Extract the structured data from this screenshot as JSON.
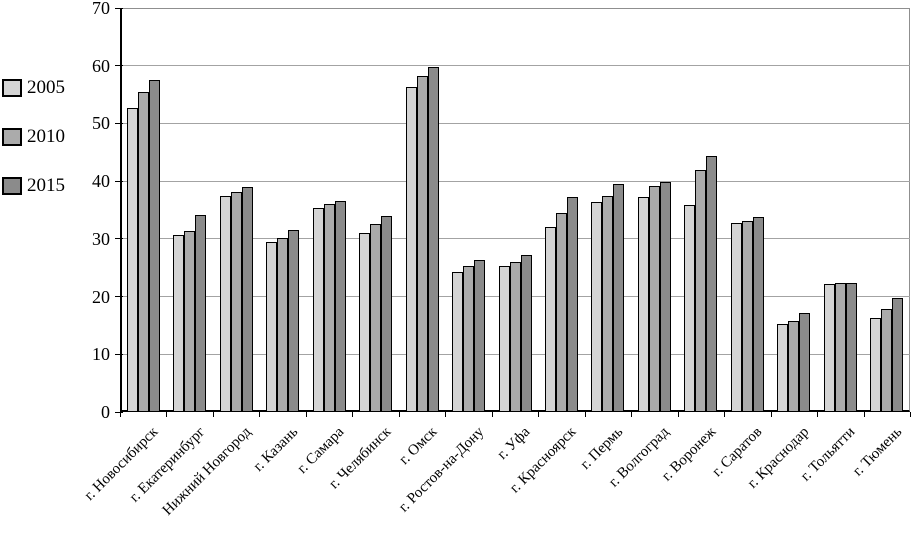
{
  "chart_data": {
    "type": "bar",
    "title": "",
    "xlabel": "",
    "ylabel": "",
    "categories": [
      "г. Новосибирск",
      "г. Екатеринбург",
      "Нижний Новгород",
      "г. Казань",
      "г. Самара",
      "г. Челябинск",
      "г. Омск",
      "г. Ростов-на-Дону",
      "г. Уфа",
      "г. Красноярск",
      "г. Пермь",
      "г. Волгоград",
      "г. Воронеж",
      "г. Саратов",
      "г. Краснодар",
      "г. Тольятти",
      "г. Тюмень"
    ],
    "series": [
      {
        "name": "2005",
        "color": "#d4d4d4",
        "values": [
          52.6,
          30.6,
          37.4,
          29.5,
          35.4,
          31.0,
          56.3,
          24.3,
          25.3,
          32.0,
          36.3,
          37.3,
          35.8,
          32.7,
          15.2,
          22.2,
          16.3
        ]
      },
      {
        "name": "2010",
        "color": "#ababab",
        "values": [
          55.5,
          31.3,
          38.1,
          30.2,
          36.1,
          32.6,
          58.3,
          25.3,
          26.0,
          34.5,
          37.5,
          39.2,
          42.0,
          33.1,
          15.8,
          22.3,
          17.8
        ]
      },
      {
        "name": "2015",
        "color": "#8b8b8b",
        "values": [
          57.6,
          34.1,
          39.0,
          31.5,
          36.5,
          34.0,
          59.7,
          26.3,
          27.2,
          37.3,
          39.5,
          39.8,
          44.3,
          33.8,
          17.1,
          22.3,
          19.8
        ]
      }
    ],
    "ylim": [
      0,
      70
    ],
    "yticks": [
      0,
      10,
      20,
      30,
      40,
      50,
      60,
      70
    ],
    "grid": "horizontal",
    "legend_position": "left"
  },
  "colors": {
    "background": "#ffffff",
    "bar_border": "#000000",
    "axis": "#000000",
    "gridline": "#a3a3a3",
    "plot_border": "#8f8f8f"
  }
}
